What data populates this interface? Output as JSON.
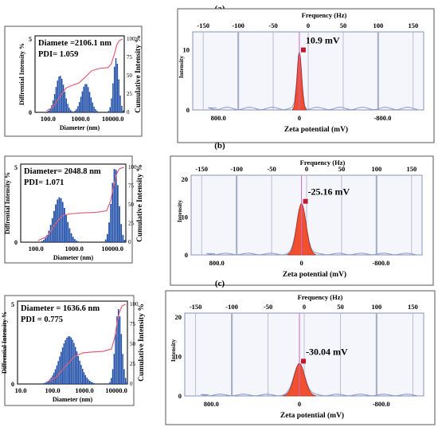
{
  "panels": [
    {
      "label": "(a)",
      "size": {
        "text_diameter": "Diamete   =2106.1 nm",
        "text_pdi": "PDI= 1.059",
        "ylabel_left": "Diffrential Intensity %",
        "ylabel_right": "Cumulative Intensity %",
        "xlabel": "Diameter (nm)",
        "x_ticks": [
          "100.0",
          "1000.0",
          "10000.0"
        ],
        "y_left_ticks": [
          0,
          5
        ],
        "y_right_ticks": [
          0,
          25,
          50,
          75,
          100
        ],
        "x_log_range": [
          1.6,
          4.35
        ],
        "ylim": [
          0,
          5
        ],
        "peaks": [
          {
            "center_log": 2.35,
            "sigma": 0.14,
            "height": 2.5
          },
          {
            "center_log": 3.15,
            "sigma": 0.14,
            "height": 1.95
          },
          {
            "center_log": 4.08,
            "sigma": 0.085,
            "height": 3.7
          }
        ],
        "cumulative": {
          "x_log": [
            1.95,
            2.15,
            2.35,
            2.55,
            2.75,
            2.95,
            3.15,
            3.35,
            3.6,
            3.85,
            3.95,
            4.05,
            4.12,
            4.2,
            4.3
          ],
          "y": [
            2,
            7,
            20,
            33,
            37,
            40,
            48,
            57,
            60,
            61,
            66,
            80,
            92,
            98,
            100
          ]
        }
      },
      "zeta": {
        "freq_label": "Frequency (Hz)",
        "freq_ticks": [
          "-150",
          "-100",
          "-50",
          "0",
          "50",
          "100",
          "150"
        ],
        "ylabel": "Intensity",
        "y_ticks": [
          "0",
          "10"
        ],
        "ylim": [
          0,
          13
        ],
        "x_ticks": [
          "800.0",
          "0",
          "-800.0"
        ],
        "xlabel": "Zeta potential (mV)",
        "value_label": "10.9 mV",
        "peak": {
          "center": 10.9,
          "height": 9.6,
          "width": 22
        },
        "xlim": [
          1050,
          -1200
        ]
      }
    },
    {
      "label": "(b)",
      "size": {
        "text_diameter": "Diameter= 2048.8 nm",
        "text_pdi": "PDI= 1.071",
        "ylabel_left": "Diffrential Intensity %",
        "ylabel_right": "Cumulative Intensity %",
        "xlabel": "Diameter (nm)",
        "x_ticks": [
          "100.0",
          "1000.0",
          "10000.0"
        ],
        "y_left_ticks": [
          0,
          5
        ],
        "y_right_ticks": [
          0,
          25,
          50,
          75,
          100
        ],
        "x_log_range": [
          1.6,
          4.35
        ],
        "ylim": [
          0,
          5
        ],
        "peaks": [
          {
            "center_log": 2.6,
            "sigma": 0.17,
            "height": 3.0
          },
          {
            "center_log": 4.05,
            "sigma": 0.095,
            "height": 5.0
          }
        ],
        "cumulative": {
          "x_log": [
            2.05,
            2.3,
            2.5,
            2.7,
            2.9,
            3.2,
            3.6,
            3.85,
            3.95,
            4.03,
            4.1,
            4.18,
            4.3
          ],
          "y": [
            2,
            8,
            24,
            36,
            38,
            39,
            40,
            42,
            55,
            75,
            90,
            98,
            100
          ]
        }
      },
      "zeta": {
        "freq_label": "Frequency (Hz)",
        "freq_ticks": [
          "-150",
          "-100",
          "-50",
          "0",
          "50",
          "100",
          "150"
        ],
        "ylabel": "Intensity",
        "y_ticks": [
          "0",
          "10",
          "20"
        ],
        "ylim": [
          0,
          21
        ],
        "x_ticks": [
          "800.0",
          "0",
          "-800.0"
        ],
        "xlabel": "Zeta potential (mV)",
        "value_label": "-25.16 mV",
        "peak": {
          "center": -25.16,
          "height": 13.5,
          "width": 45
        },
        "xlim": [
          1050,
          -1200
        ]
      }
    },
    {
      "label": "(c)",
      "size": {
        "text_diameter": "Diameter = 1636.6 nm",
        "text_pdi": "PDI = 0.775",
        "ylabel_left": "Diffrential Intensity %",
        "ylabel_right": "Cumulative Intensity %",
        "xlabel": "Diameter (nm)",
        "x_ticks": [
          "10.0",
          "100.0",
          "1000.0",
          "10000.0"
        ],
        "y_left_ticks": [
          0,
          5
        ],
        "y_right_ticks": [
          0,
          25,
          50,
          75,
          100
        ],
        "x_log_range": [
          0.9,
          4.35
        ],
        "ylim": [
          0,
          5
        ],
        "peaks": [
          {
            "center_log": 2.5,
            "sigma": 0.28,
            "height": 3.0
          },
          {
            "center_log": 4.05,
            "sigma": 0.1,
            "height": 4.7
          }
        ],
        "cumulative": {
          "x_log": [
            1.8,
            2.1,
            2.4,
            2.7,
            2.95,
            3.2,
            3.6,
            3.85,
            3.95,
            4.03,
            4.1,
            4.18,
            4.3
          ],
          "y": [
            2,
            8,
            22,
            35,
            39,
            40,
            41,
            44,
            58,
            78,
            90,
            98,
            100
          ]
        }
      },
      "zeta": {
        "freq_label": "Frequency (Hz)",
        "freq_ticks": [
          "-150",
          "-100",
          "-50",
          "0",
          "50",
          "100",
          "150"
        ],
        "ylabel": "Intensity",
        "y_ticks": [
          "0",
          "10",
          "20"
        ],
        "ylim": [
          0,
          21
        ],
        "x_ticks": [
          "800.0",
          "0",
          "-800.0"
        ],
        "xlabel": "Zeta potential (mV)",
        "value_label": "-30.04 mV",
        "peak": {
          "center": -30.04,
          "height": 8.2,
          "width": 50
        },
        "xlim": [
          1050,
          -1200
        ]
      }
    }
  ],
  "chart_data": [
    {
      "type": "bar",
      "title": "",
      "xlabel": "Diameter (nm)",
      "ylabel": "Diffrential Intensity %",
      "annotations": [
        "Diamete   =2106.1 nm",
        "PDI= 1.059"
      ],
      "peaks_nm": [
        220,
        1400,
        12000
      ],
      "peak_heights": [
        2.5,
        1.95,
        3.7
      ]
    },
    {
      "type": "line",
      "title": "",
      "xlabel": "Zeta potential (mV)",
      "ylabel": "Intensity",
      "annotations": [
        "10.9 mV"
      ],
      "peak_mV": 10.9,
      "peak_height": 9.6
    },
    {
      "type": "bar",
      "title": "",
      "xlabel": "Diameter (nm)",
      "ylabel": "Diffrential Intensity %",
      "annotations": [
        "Diameter= 2048.8 nm",
        "PDI= 1.071"
      ],
      "peaks_nm": [
        400,
        11200
      ],
      "peak_heights": [
        3.0,
        5.0
      ]
    },
    {
      "type": "line",
      "title": "",
      "xlabel": "Zeta potential (mV)",
      "ylabel": "Intensity",
      "annotations": [
        "-25.16 mV"
      ],
      "peak_mV": -25.16,
      "peak_height": 13.5
    },
    {
      "type": "bar",
      "title": "",
      "xlabel": "Diameter (nm)",
      "ylabel": "Diffrential Intensity %",
      "annotations": [
        "Diameter = 1636.6 nm",
        "PDI = 0.775"
      ],
      "peaks_nm": [
        320,
        11200
      ],
      "peak_heights": [
        3.0,
        4.7
      ]
    },
    {
      "type": "line",
      "title": "",
      "xlabel": "Zeta potential (mV)",
      "ylabel": "Intensity",
      "annotations": [
        "-30.04 mV"
      ],
      "peak_mV": -30.04,
      "peak_height": 8.2
    }
  ],
  "colors": {
    "bar": "#1f4ea8",
    "cumulative": "#e0607a",
    "zeta_fill": "#f05030",
    "zeta_line": "#8899cc",
    "marker": "#c0182c",
    "guide": "#cc66cc"
  }
}
